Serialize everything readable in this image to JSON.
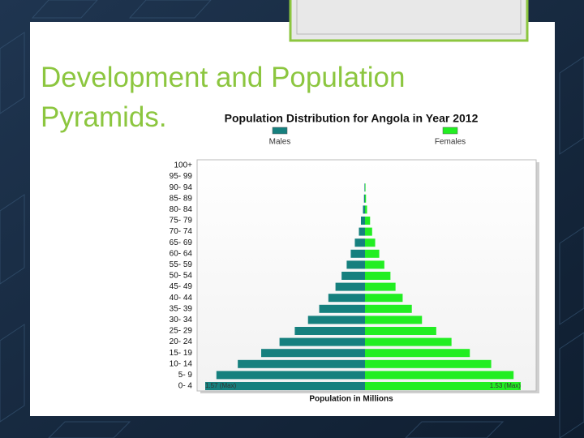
{
  "slide_title": "Development and Population Pyramids.",
  "chart_data": {
    "type": "pyramid",
    "title": "Population Distribution for Angola in Year 2012",
    "x_label": "Population in Millions",
    "categories": [
      "100+",
      "95- 99",
      "90- 94",
      "85- 89",
      "80- 84",
      "75- 79",
      "70- 74",
      "65- 69",
      "60- 64",
      "55- 59",
      "50- 54",
      "45- 49",
      "40- 44",
      "35- 39",
      "30- 34",
      "25- 29",
      "20- 24",
      "15- 19",
      "10- 14",
      "5- 9",
      "0- 4"
    ],
    "series": [
      {
        "name": "Males",
        "color": "#16807e",
        "side": "left",
        "max": {
          "value": 1.57,
          "label": "1.57 (Max)"
        },
        "values": [
          0,
          0,
          0.005,
          0.01,
          0.02,
          0.04,
          0.06,
          0.1,
          0.14,
          0.18,
          0.23,
          0.29,
          0.36,
          0.45,
          0.56,
          0.69,
          0.84,
          1.02,
          1.25,
          1.46,
          1.57
        ]
      },
      {
        "name": "Females",
        "color": "#22ee22",
        "side": "right",
        "max": {
          "value": 1.53,
          "label": "1.53 (Max)"
        },
        "values": [
          0,
          0,
          0.005,
          0.01,
          0.02,
          0.05,
          0.07,
          0.1,
          0.14,
          0.19,
          0.25,
          0.3,
          0.37,
          0.46,
          0.56,
          0.7,
          0.85,
          1.03,
          1.24,
          1.46,
          1.53
        ]
      }
    ]
  }
}
